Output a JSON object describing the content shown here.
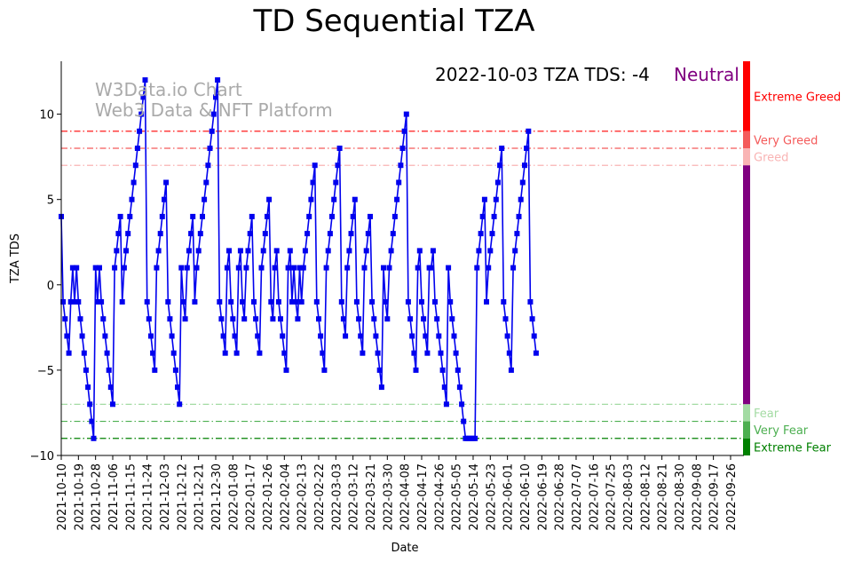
{
  "chart_data": {
    "type": "line",
    "title": "TD Sequential TZA",
    "xlabel": "Date",
    "ylabel": "TZA TDS",
    "ylim": [
      -10,
      13.1
    ],
    "yticks": [
      -10,
      -5,
      0,
      5,
      10
    ],
    "xlim": [
      "2021-10-10",
      "2022-10-03"
    ],
    "xticks": [
      "2021-10-10",
      "2021-10-19",
      "2021-10-28",
      "2021-11-06",
      "2021-11-15",
      "2021-11-24",
      "2021-12-03",
      "2021-12-12",
      "2021-12-21",
      "2021-12-30",
      "2022-01-08",
      "2022-01-17",
      "2022-01-26",
      "2022-02-04",
      "2022-02-13",
      "2022-02-22",
      "2022-03-03",
      "2022-03-12",
      "2022-03-21",
      "2022-03-30",
      "2022-04-08",
      "2022-04-17",
      "2022-04-26",
      "2022-05-05",
      "2022-05-14",
      "2022-05-23",
      "2022-06-01",
      "2022-06-10",
      "2022-06-19",
      "2022-06-28",
      "2022-07-07",
      "2022-07-16",
      "2022-07-25",
      "2022-08-03",
      "2022-08-12",
      "2022-08-21",
      "2022-08-30",
      "2022-09-08",
      "2022-09-17",
      "2022-09-26"
    ],
    "series": [
      {
        "color": "#0000ee",
        "marker": "square",
        "values": [
          4,
          -1,
          -2,
          -3,
          -4,
          -1,
          1,
          -1,
          1,
          -1,
          -2,
          -3,
          -4,
          -5,
          -6,
          -7,
          -8,
          -9,
          1,
          -1,
          1,
          -1,
          -2,
          -3,
          -4,
          -5,
          -6,
          -7,
          1,
          2,
          3,
          4,
          -1,
          1,
          2,
          3,
          4,
          5,
          6,
          7,
          8,
          9,
          10,
          11,
          12,
          -1,
          -2,
          -3,
          -4,
          -5,
          1,
          2,
          3,
          4,
          5,
          6,
          -1,
          -2,
          -3,
          -4,
          -5,
          -6,
          -7,
          1,
          -1,
          -2,
          1,
          2,
          3,
          4,
          -1,
          1,
          2,
          3,
          4,
          5,
          6,
          7,
          8,
          9,
          10,
          11,
          12,
          -1,
          -2,
          -3,
          -4,
          1,
          2,
          -1,
          -2,
          -3,
          -4,
          1,
          2,
          -1,
          -2,
          1,
          2,
          3,
          4,
          -1,
          -2,
          -3,
          -4,
          1,
          2,
          3,
          4,
          5,
          -1,
          -2,
          1,
          2,
          -1,
          -2,
          -3,
          -4,
          -5,
          1,
          2,
          -1,
          1,
          -1,
          -2,
          1,
          -1,
          1,
          2,
          3,
          4,
          5,
          6,
          7,
          -1,
          -2,
          -3,
          -4,
          -5,
          1,
          2,
          3,
          4,
          5,
          6,
          7,
          8,
          -1,
          -2,
          -3,
          1,
          2,
          3,
          4,
          5,
          -1,
          -2,
          -3,
          -4,
          1,
          2,
          3,
          4,
          -1,
          -2,
          -3,
          -4,
          -5,
          -6,
          1,
          -1,
          -2,
          1,
          2,
          3,
          4,
          5,
          6,
          7,
          8,
          9,
          10,
          -1,
          -2,
          -3,
          -4,
          -5,
          1,
          2,
          -1,
          -2,
          -3,
          -4,
          1,
          1,
          2,
          -1,
          -2,
          -3,
          -4,
          -5,
          -6,
          -7,
          1,
          -1,
          -2,
          -3,
          -4,
          -5,
          -6,
          -7,
          -8,
          -9,
          -9,
          -9,
          -9,
          -9,
          -9,
          1,
          2,
          3,
          4,
          5,
          -1,
          1,
          2,
          3,
          4,
          5,
          6,
          7,
          8,
          -1,
          -2,
          -3,
          -4,
          -5,
          1,
          2,
          3,
          4,
          5,
          6,
          7,
          8,
          9,
          -1,
          -2,
          -3,
          -4
        ]
      }
    ],
    "thresholds": [
      {
        "value": 9,
        "color": "#ff0000"
      },
      {
        "value": 8,
        "color": "#f45a5a"
      },
      {
        "value": 7,
        "color": "#f9b4b4"
      },
      {
        "value": -7,
        "color": "#a3dba3"
      },
      {
        "value": -8,
        "color": "#4caf50"
      },
      {
        "value": -9,
        "color": "#008000"
      }
    ],
    "sentiment_bar": [
      {
        "label": "Extreme Greed",
        "from": 9,
        "to": 13.1,
        "color": "#ff0000"
      },
      {
        "label": "Very Greed",
        "from": 8,
        "to": 9,
        "color": "#f45a5a"
      },
      {
        "label": "Greed",
        "from": 7,
        "to": 8,
        "color": "#f9b4b4"
      },
      {
        "label": "",
        "from": -7,
        "to": 7,
        "color": "#800080"
      },
      {
        "label": "Fear",
        "from": -8,
        "to": -7,
        "color": "#a3dba3"
      },
      {
        "label": "Very Fear",
        "from": -9,
        "to": -8,
        "color": "#4caf50"
      },
      {
        "label": "Extreme Fear",
        "from": -10,
        "to": -9,
        "color": "#008000"
      }
    ],
    "status": {
      "text": "2022-10-03 TZA TDS: -4",
      "state": "Neutral",
      "state_color": "#800080"
    },
    "watermark": [
      "W3Data.io Chart",
      "Web3 Data & NFT Platform"
    ],
    "grid": false,
    "legend": "none"
  }
}
